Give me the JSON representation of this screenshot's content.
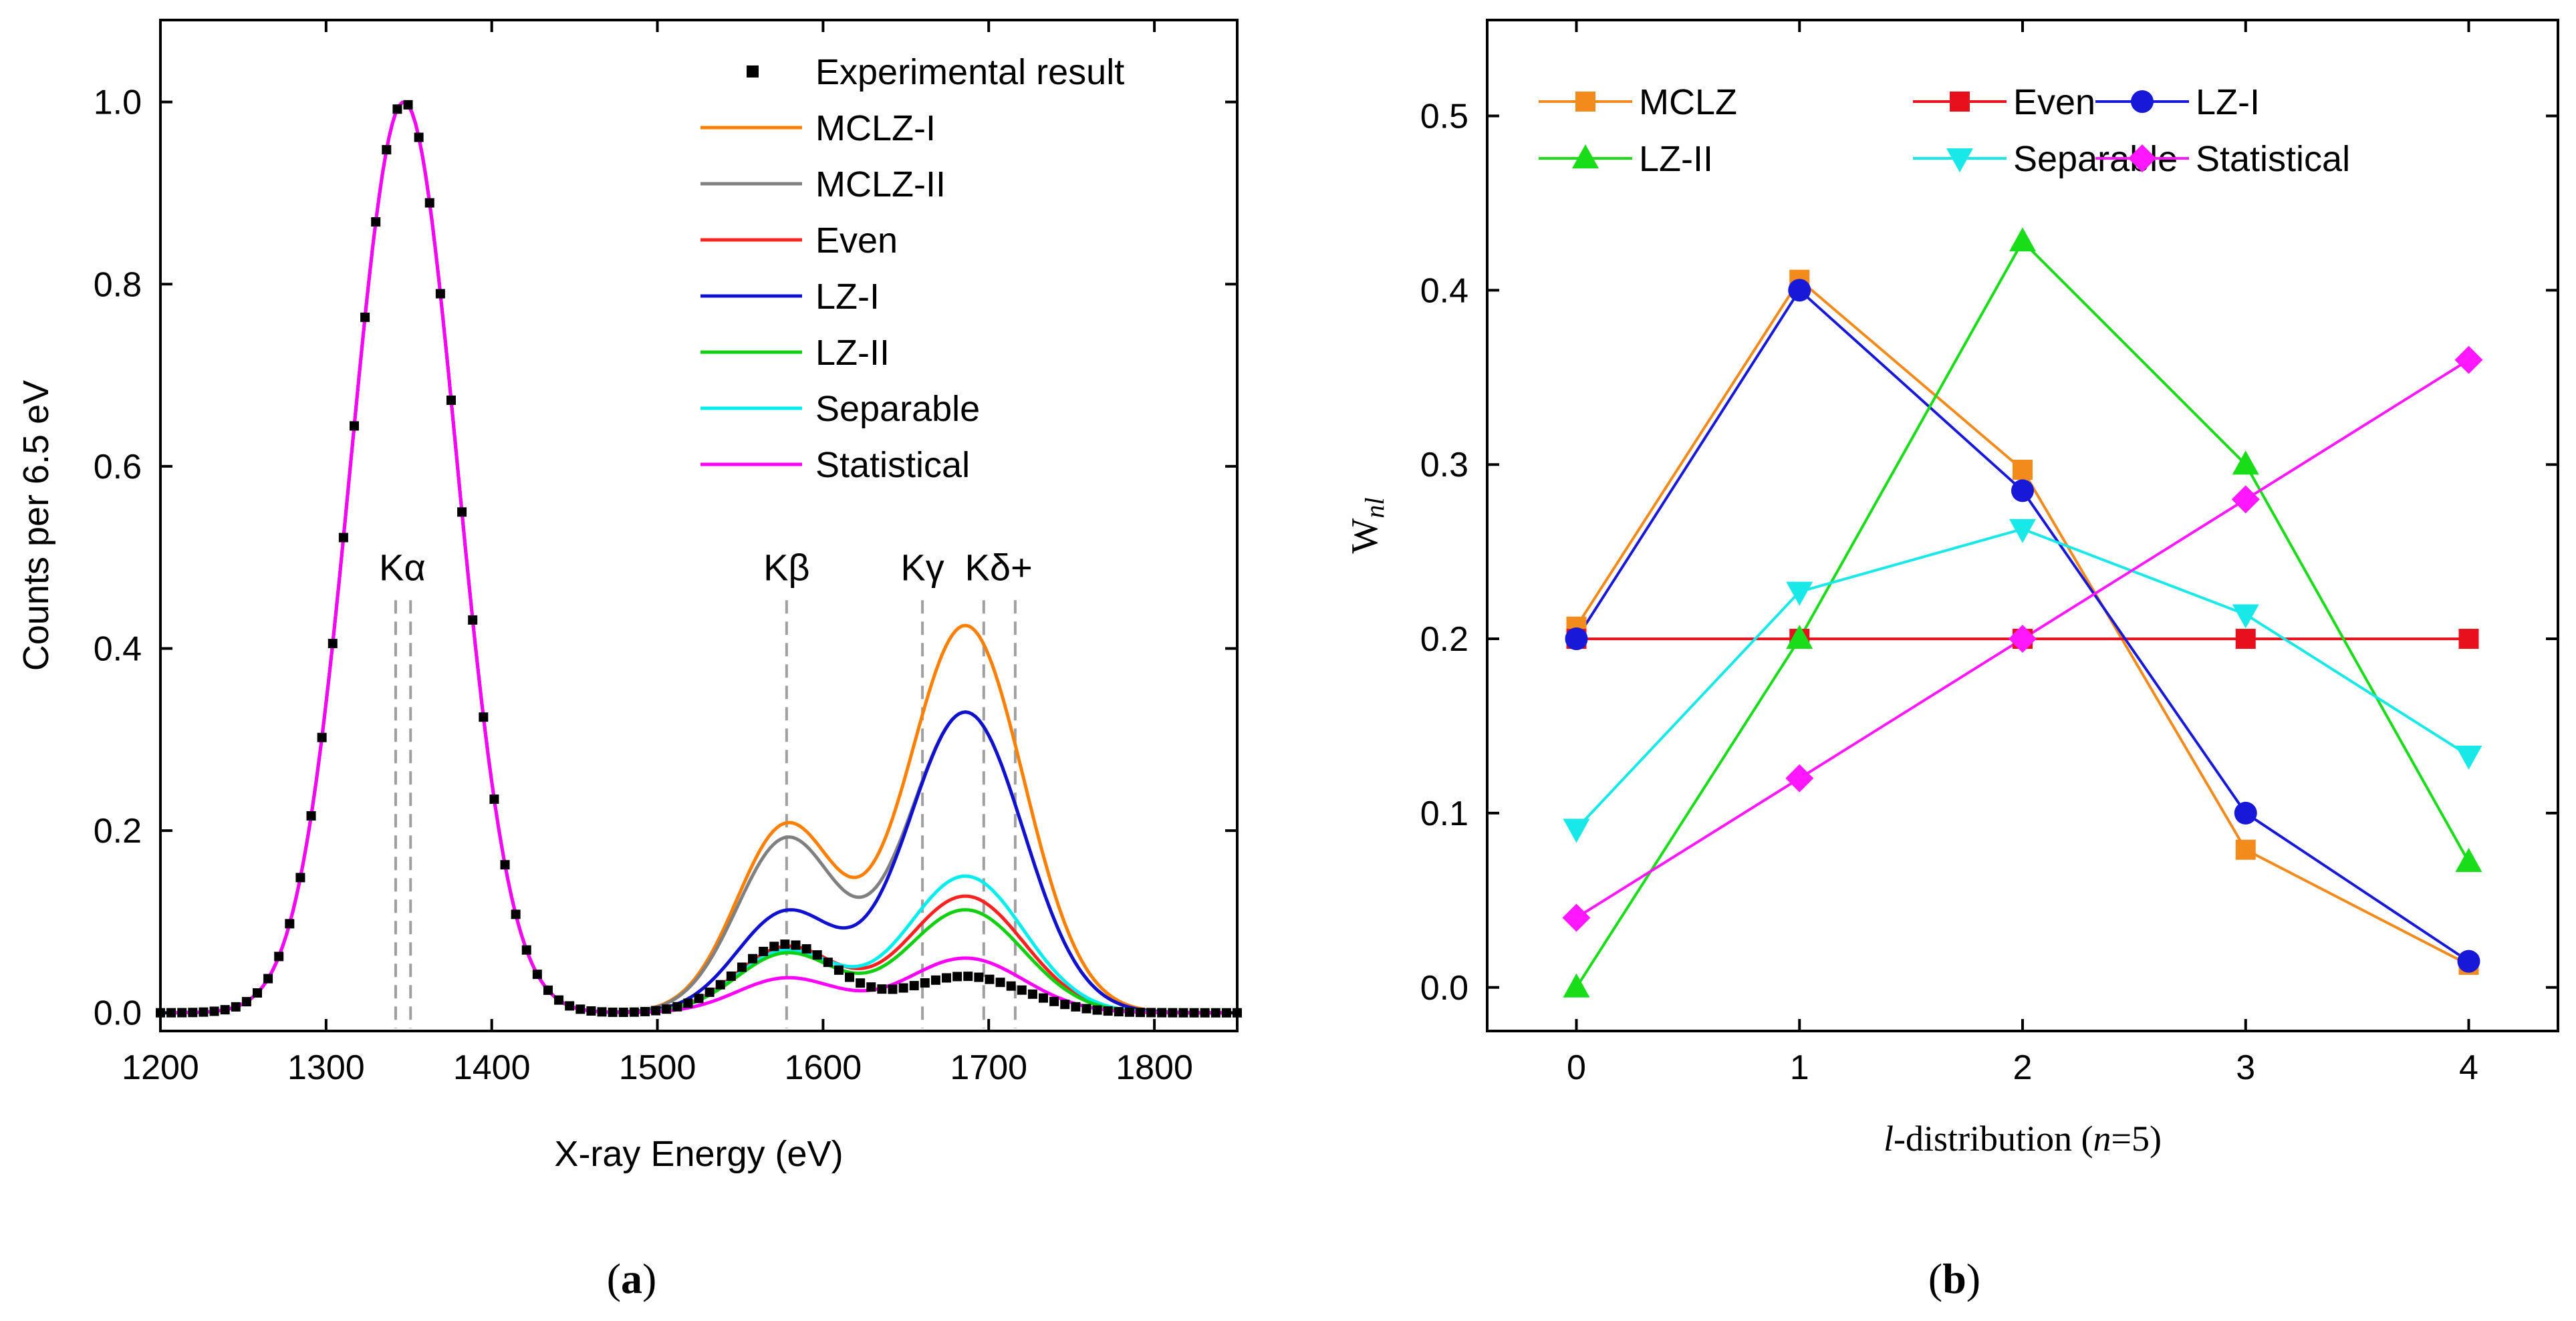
{
  "chart_data": [
    {
      "panel_label": "a",
      "type": "line",
      "xlabel": "X-ray Energy (eV)",
      "ylabel": "Counts per 6.5 eV",
      "xlim": [
        1200,
        1850
      ],
      "ylim": [
        -0.02,
        1.09
      ],
      "xticks": [
        1200,
        1300,
        1400,
        1500,
        1600,
        1700,
        1800
      ],
      "yticks": [
        0.0,
        0.2,
        0.4,
        0.6,
        0.8,
        1.0
      ],
      "xtick_labels": [
        "1200",
        "1300",
        "1400",
        "1500",
        "1600",
        "1700",
        "1800"
      ],
      "ytick_labels": [
        "0.0",
        "0.2",
        "0.4",
        "0.6",
        "0.8",
        "1.0"
      ],
      "legend_position": "top-right",
      "legend": [
        "Experimental result",
        "MCLZ-I",
        "MCLZ-II",
        "Even",
        "LZ-I",
        "LZ-II",
        "Separable",
        "Statistical"
      ],
      "line_annotations": [
        {
          "label": "Kα",
          "lines_x": [
            1342,
            1351
          ],
          "label_x": 1346,
          "label_y": 0.475
        },
        {
          "label": "Kβ",
          "lines_x": [
            1578
          ],
          "label_x": 1578,
          "label_y": 0.475
        },
        {
          "label": "Kγ",
          "lines_x": [
            1660
          ],
          "label_x": 1660,
          "label_y": 0.475
        },
        {
          "label": "Kδ+",
          "lines_x": [
            1697,
            1716
          ],
          "label_x": 1706,
          "label_y": 0.475
        }
      ],
      "ka_peak": {
        "center": 1347,
        "sigma": 32,
        "height": 1.0
      },
      "series": [
        {
          "name": "Experimental result",
          "kind": "marker",
          "color": "#000000",
          "kb": 0.075,
          "high": 0.04
        },
        {
          "name": "MCLZ-I",
          "color": "#ff7f00",
          "kb": 0.205,
          "high": 0.425
        },
        {
          "name": "MCLZ-II",
          "color": "#808080",
          "kb": 0.19,
          "high": 0.33
        },
        {
          "name": "Even",
          "color": "#ff2020",
          "kb": 0.072,
          "high": 0.128
        },
        {
          "name": "LZ-I",
          "color": "#1010d0",
          "kb": 0.11,
          "high": 0.33
        },
        {
          "name": "LZ-II",
          "color": "#10d010",
          "kb": 0.065,
          "high": 0.113
        },
        {
          "name": "Separable",
          "color": "#00eeee",
          "kb": 0.068,
          "high": 0.15
        },
        {
          "name": "Statistical",
          "color": "#ff00ff",
          "kb": 0.038,
          "high": 0.06
        }
      ]
    },
    {
      "panel_label": "b",
      "type": "line",
      "xlabel_l": "l",
      "xlabel_mid": "-distribution (",
      "xlabel_n": "n",
      "xlabel_end": "=5)",
      "ylabel_main": "W",
      "ylabel_sub": "nl",
      "x": [
        0,
        1,
        2,
        3,
        4
      ],
      "xlim": [
        -0.4,
        4.4
      ],
      "ylim": [
        -0.025,
        0.555
      ],
      "xticks": [
        0,
        1,
        2,
        3,
        4
      ],
      "yticks": [
        0.0,
        0.1,
        0.2,
        0.3,
        0.4,
        0.5
      ],
      "xtick_labels": [
        "0",
        "1",
        "2",
        "3",
        "4"
      ],
      "ytick_labels": [
        "0.0",
        "0.1",
        "0.2",
        "0.3",
        "0.4",
        "0.5"
      ],
      "legend_position": "top",
      "series": [
        {
          "name": "MCLZ",
          "color": "#f28a1c",
          "marker": "square",
          "values": [
            0.207,
            0.406,
            0.297,
            0.079,
            0.013
          ]
        },
        {
          "name": "Even",
          "color": "#e8101c",
          "marker": "square",
          "values": [
            0.2,
            0.2,
            0.2,
            0.2,
            0.2
          ]
        },
        {
          "name": "LZ-I",
          "color": "#1818d8",
          "marker": "circle",
          "values": [
            0.2,
            0.4,
            0.285,
            0.1,
            0.015
          ]
        },
        {
          "name": "LZ-II",
          "color": "#18dd18",
          "marker": "triangle-up",
          "values": [
            0.0,
            0.2,
            0.428,
            0.3,
            0.072
          ]
        },
        {
          "name": "Separable",
          "color": "#18e8e8",
          "marker": "triangle-down",
          "values": [
            0.091,
            0.227,
            0.263,
            0.214,
            0.133
          ]
        },
        {
          "name": "Statistical",
          "color": "#ff18ff",
          "marker": "diamond",
          "values": [
            0.04,
            0.12,
            0.2,
            0.28,
            0.36
          ]
        }
      ]
    }
  ]
}
